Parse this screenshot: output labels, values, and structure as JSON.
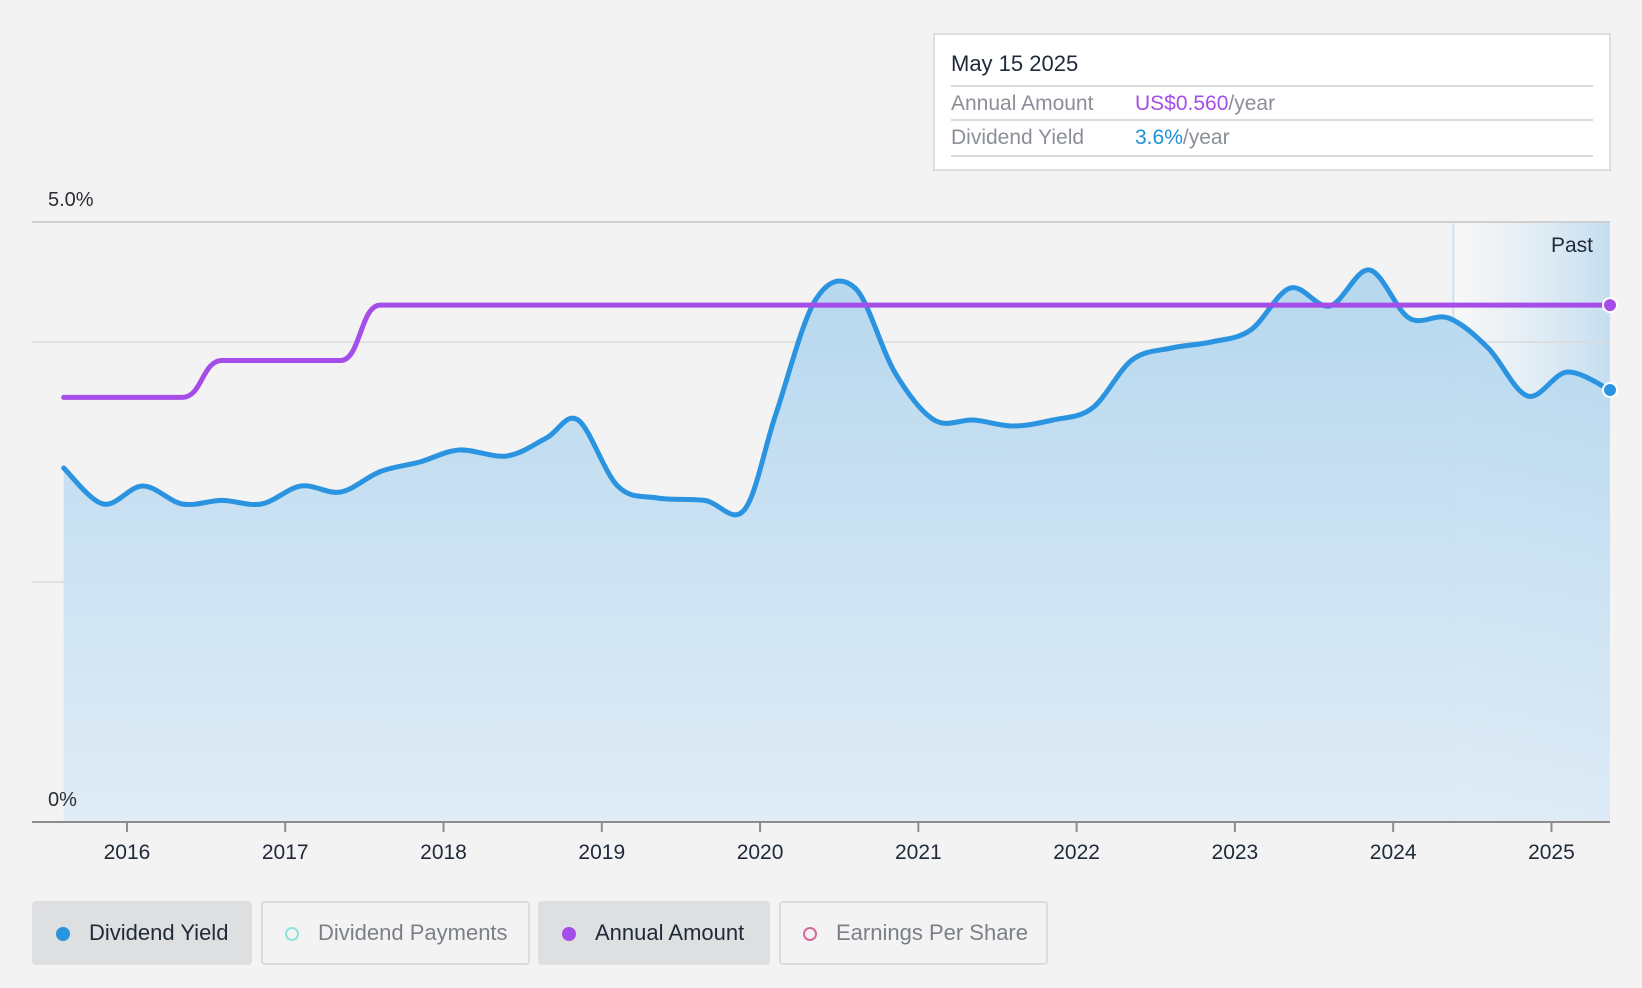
{
  "tooltip": {
    "date": "May 15 2025",
    "annual_label": "Annual Amount",
    "annual_value": "US$0.560",
    "annual_unit": "/year",
    "yield_label": "Dividend Yield",
    "yield_value": "3.6%",
    "yield_unit": "/year"
  },
  "legend": [
    {
      "label": "Dividend Yield",
      "color": "#2b94e0",
      "active": true,
      "filled": true
    },
    {
      "label": "Dividend Payments",
      "color": "#8ee3dc",
      "active": false,
      "filled": false
    },
    {
      "label": "Annual Amount",
      "color": "#a44de8",
      "active": true,
      "filled": true
    },
    {
      "label": "Earnings Per Share",
      "color": "#d46a9a",
      "active": false,
      "filled": false
    }
  ],
  "chart_data": {
    "type": "line",
    "y_labels": {
      "top": "5.0%",
      "bottom": "0%"
    },
    "ylim": [
      0,
      5.0
    ],
    "x_ticks": [
      "2016",
      "2017",
      "2018",
      "2019",
      "2020",
      "2021",
      "2022",
      "2023",
      "2024",
      "2025"
    ],
    "xlim": [
      2015.4,
      2025.37
    ],
    "forecast_region_label": "Past",
    "forecast_region_start": 2024.38,
    "colors": {
      "yield": "#2b94e0",
      "annual": "#a44de8"
    },
    "series": [
      {
        "name": "Dividend Yield",
        "unit": "%",
        "x": [
          2015.6,
          2015.85,
          2016.1,
          2016.35,
          2016.6,
          2016.85,
          2017.1,
          2017.35,
          2017.6,
          2017.85,
          2018.1,
          2018.4,
          2018.65,
          2018.85,
          2019.1,
          2019.35,
          2019.65,
          2019.9,
          2020.1,
          2020.35,
          2020.6,
          2020.85,
          2021.1,
          2021.35,
          2021.6,
          2021.85,
          2022.1,
          2022.35,
          2022.6,
          2022.85,
          2023.1,
          2023.35,
          2023.6,
          2023.85,
          2024.1,
          2024.35,
          2024.6,
          2024.85,
          2025.1,
          2025.37
        ],
        "values": [
          2.95,
          2.65,
          2.8,
          2.65,
          2.68,
          2.65,
          2.8,
          2.75,
          2.92,
          3.0,
          3.1,
          3.05,
          3.2,
          3.35,
          2.8,
          2.7,
          2.68,
          2.6,
          3.4,
          4.35,
          4.45,
          3.75,
          3.35,
          3.35,
          3.3,
          3.35,
          3.45,
          3.85,
          3.95,
          4.0,
          4.1,
          4.45,
          4.3,
          4.6,
          4.2,
          4.2,
          3.95,
          3.55,
          3.75,
          3.6
        ]
      },
      {
        "name": "Annual Amount",
        "unit": "US$",
        "x": [
          2015.6,
          2016.35,
          2016.6,
          2017.35,
          2017.6,
          2025.37
        ],
        "values": [
          0.46,
          0.46,
          0.5,
          0.5,
          0.56,
          0.56
        ]
      }
    ]
  }
}
